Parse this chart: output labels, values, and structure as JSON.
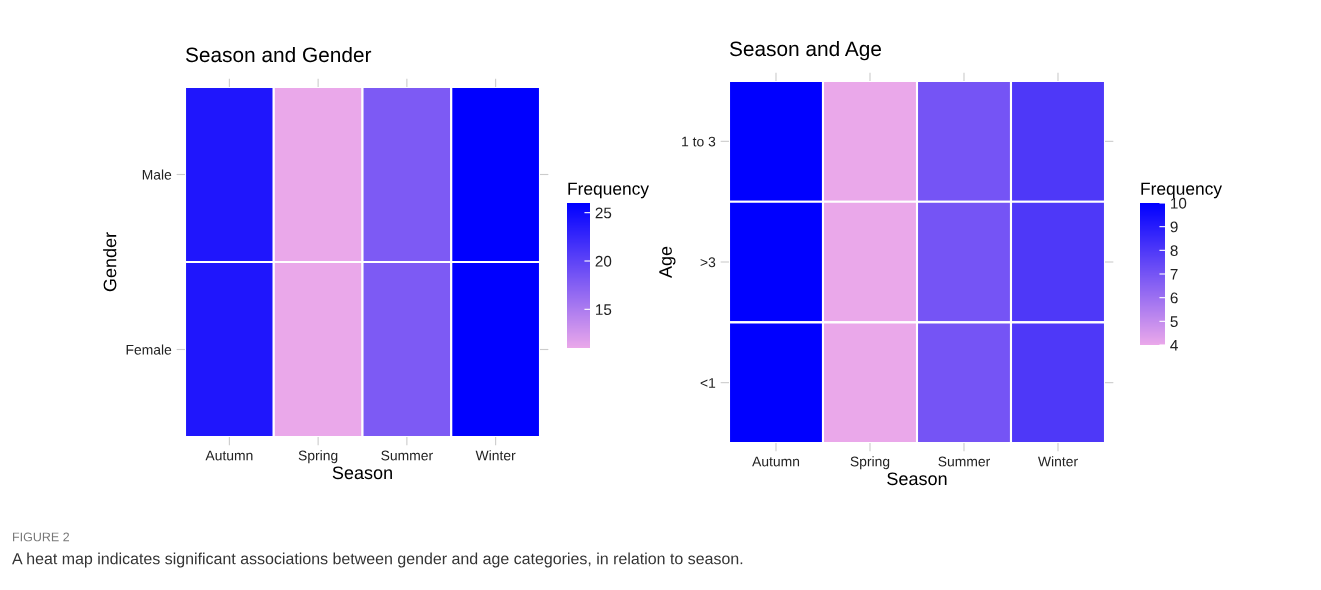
{
  "chart_data": [
    {
      "type": "heatmap",
      "title": "Season and Gender",
      "xlabel": "Season",
      "ylabel": "Gender",
      "clabel": "Frequency",
      "categories": [
        "Autumn",
        "Spring",
        "Summer",
        "Winter"
      ],
      "y_categories": [
        "Male",
        "Female"
      ],
      "cells": [
        [
          24,
          11,
          18,
          26
        ],
        [
          24,
          11,
          18,
          26
        ]
      ],
      "clim": [
        11,
        26
      ],
      "cticks": [
        15,
        20,
        25
      ],
      "colors": [
        "#eaa8ea",
        "#0000ff"
      ],
      "grid": false,
      "annotations": [
        "FIGURE 2",
        "A heat map indicates significant associations between gender and age categories, in relation to season."
      ]
    },
    {
      "type": "heatmap",
      "title": "Season and Age",
      "xlabel": "Season",
      "ylabel": "Age",
      "clabel": "Frequency",
      "categories": [
        "Autumn",
        "Spring",
        "Summer",
        "Winter"
      ],
      "y_categories": [
        "1 to 3",
        ">3",
        "<1"
      ],
      "cells": [
        [
          10,
          4,
          7,
          8
        ],
        [
          10,
          4,
          7,
          8
        ],
        [
          10,
          4,
          7,
          8
        ]
      ],
      "clim": [
        4,
        10
      ],
      "cticks": [
        4,
        5,
        6,
        7,
        8,
        9,
        10
      ],
      "colors": [
        "#eaa8ea",
        "#0000ff"
      ],
      "grid": false
    }
  ]
}
